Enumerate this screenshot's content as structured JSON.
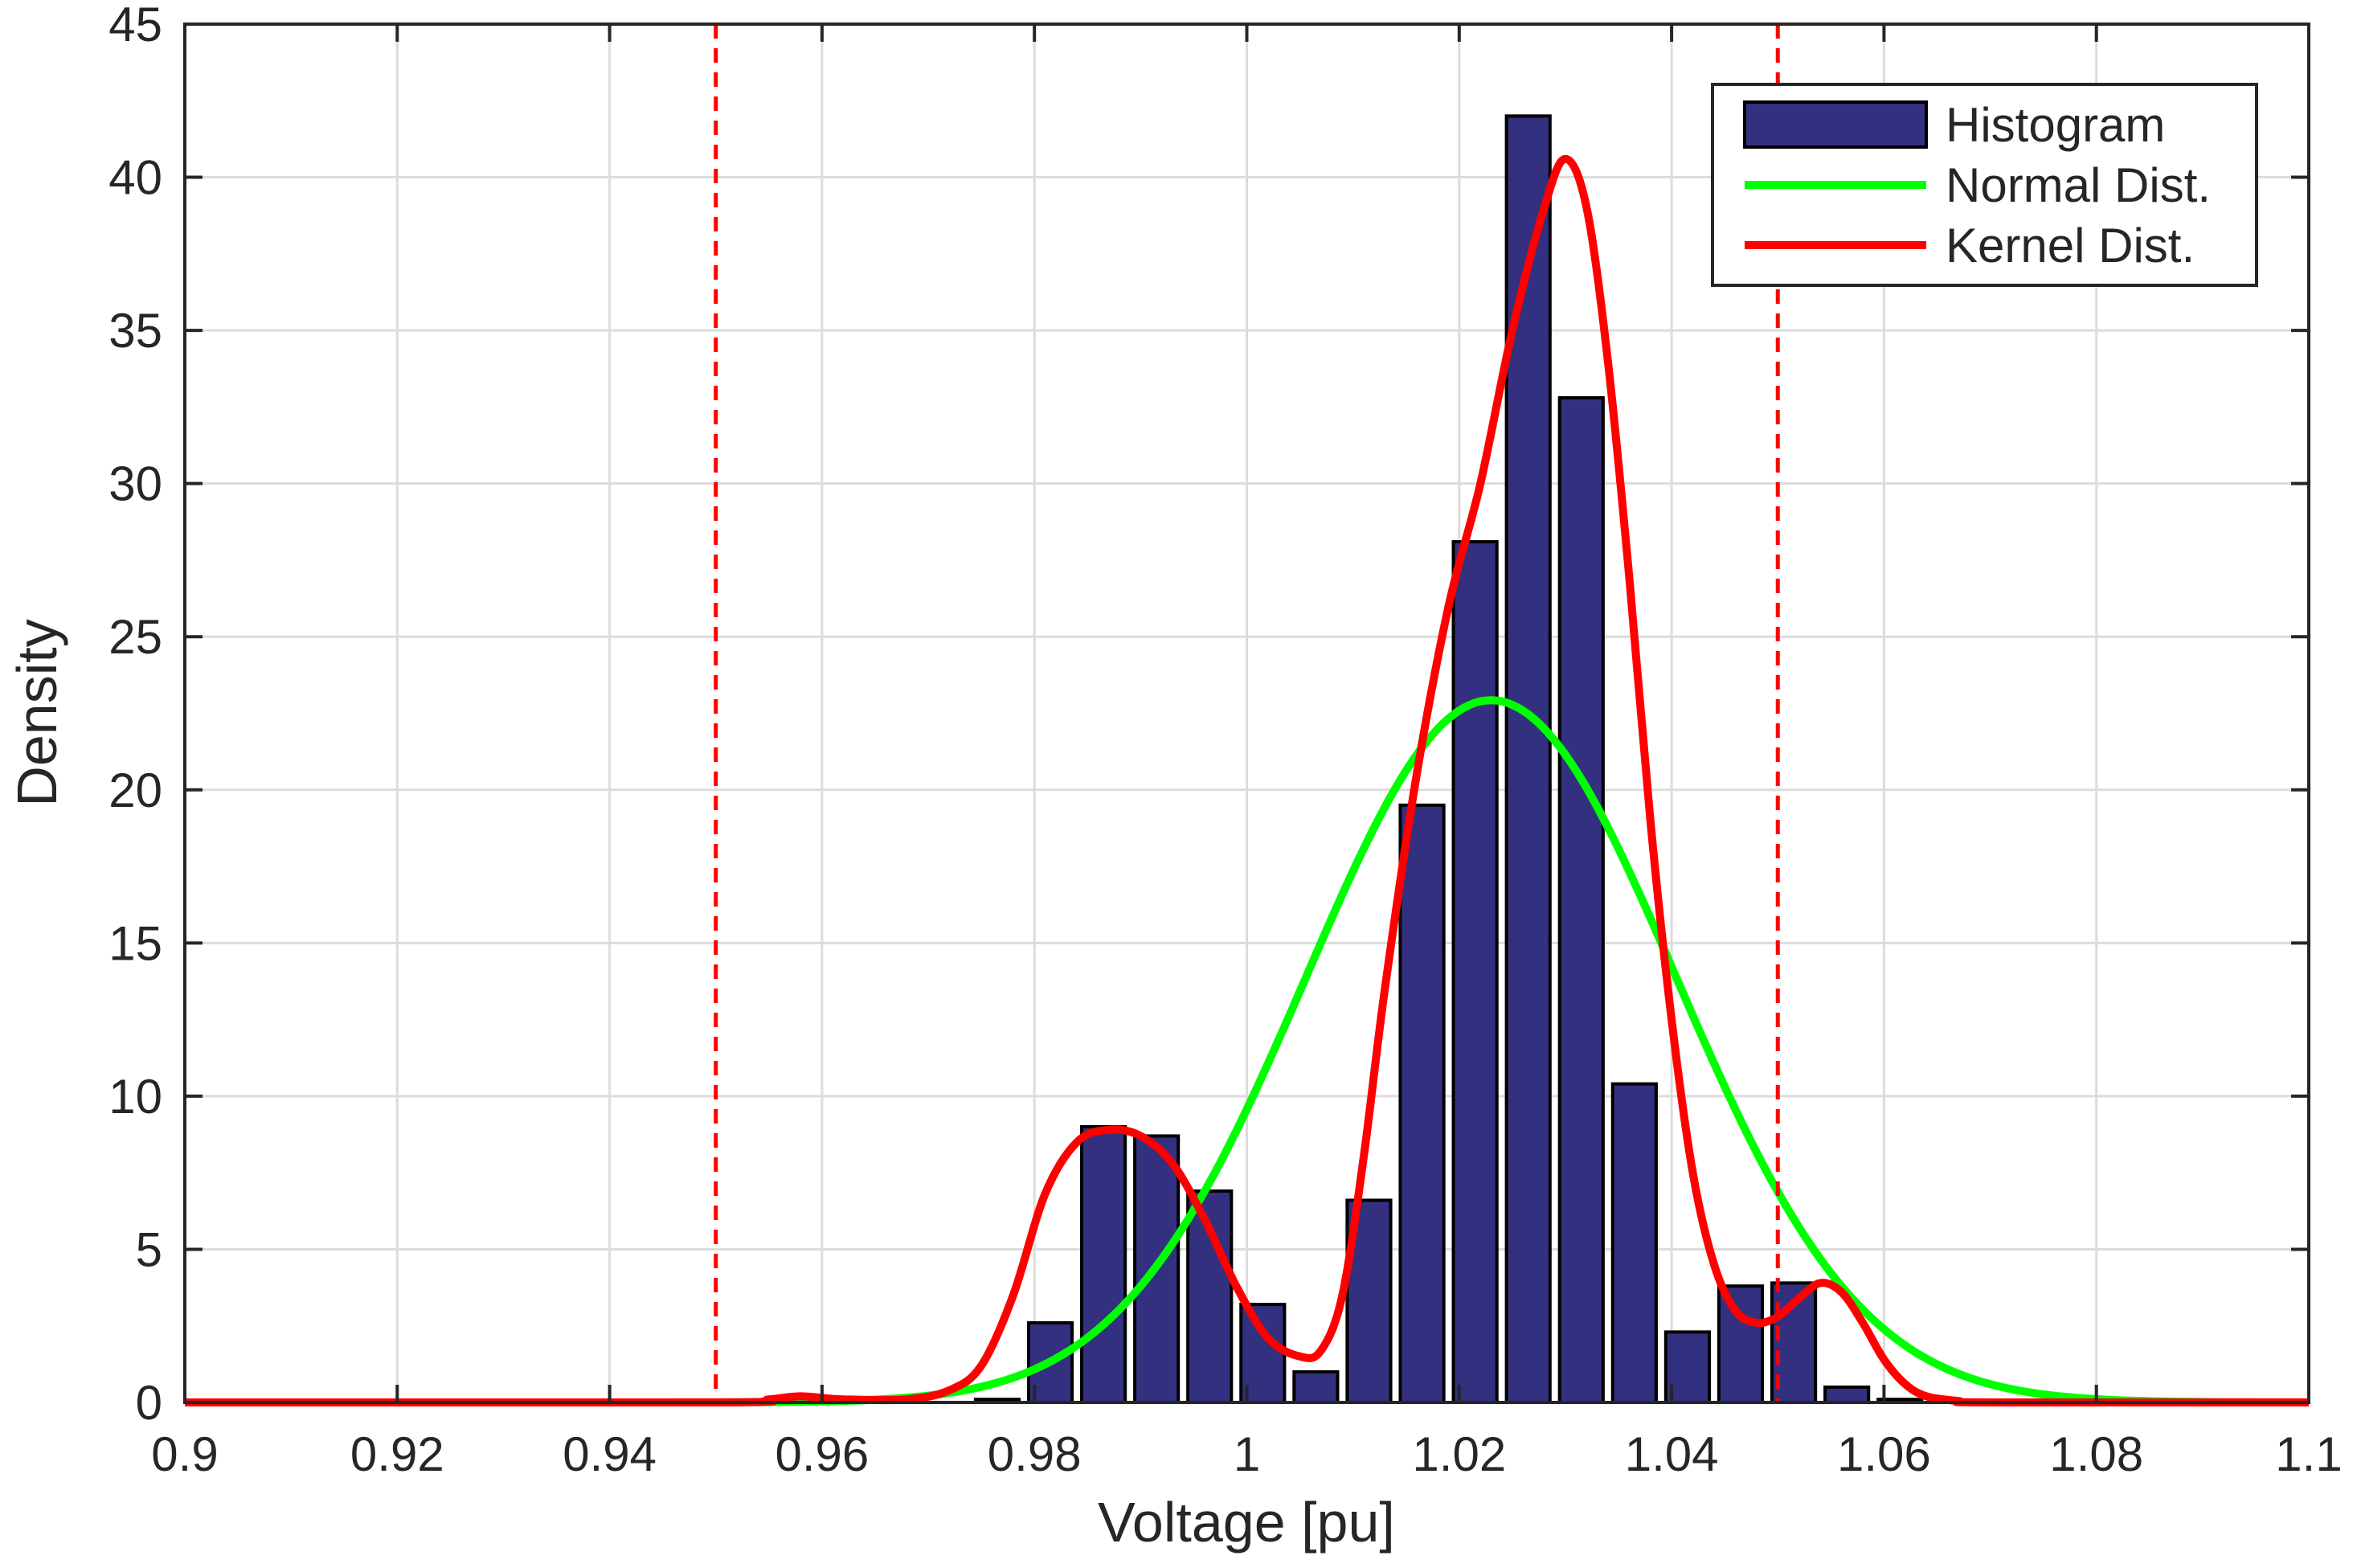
{
  "chart_data": {
    "type": "bar",
    "xlabel": "Voltage [pu]",
    "ylabel": "Density",
    "xlim": [
      0.9,
      1.1
    ],
    "ylim": [
      0,
      45
    ],
    "x_ticks": [
      0.9,
      0.92,
      0.94,
      0.96,
      0.98,
      1.0,
      1.02,
      1.04,
      1.06,
      1.08,
      1.1
    ],
    "x_tick_labels": [
      "0.9",
      "0.92",
      "0.94",
      "0.96",
      "0.98",
      "1",
      "1.02",
      "1.04",
      "1.06",
      "1.08",
      "1.1"
    ],
    "y_ticks": [
      0,
      5,
      10,
      15,
      20,
      25,
      30,
      35,
      40,
      45
    ],
    "y_tick_labels": [
      "0",
      "5",
      "10",
      "15",
      "20",
      "25",
      "30",
      "35",
      "40",
      "45"
    ],
    "grid": true,
    "legend_position": "top-right",
    "colors": {
      "histogram": "#33307f",
      "normal": "#00ff00",
      "kernel": "#ff0000",
      "limits": "#ff0000"
    },
    "histogram": {
      "name": "Histogram",
      "bin_width": 0.005,
      "bin_centers": [
        0.9565,
        0.9615,
        0.9665,
        0.9715,
        0.9765,
        0.9815,
        0.9865,
        0.9915,
        0.9965,
        1.0015,
        1.0065,
        1.0115,
        1.0165,
        1.0215,
        1.0265,
        1.0315,
        1.0365,
        1.0415,
        1.0465,
        1.0515,
        1.0565,
        1.0615
      ],
      "values": [
        0.1,
        0,
        0,
        0,
        0.1,
        2.6,
        9.0,
        8.7,
        6.9,
        3.2,
        1.0,
        6.6,
        19.5,
        28.1,
        42.0,
        32.8,
        10.4,
        2.3,
        3.8,
        3.9,
        0.5,
        0.1
      ]
    },
    "normal": {
      "name": "Normal Dist.",
      "mean": 1.023,
      "sd": 0.0174
    },
    "kernel": {
      "name": "Kernel Dist.",
      "x": [
        0.9,
        0.95,
        0.955,
        0.958,
        0.962,
        0.968,
        0.972,
        0.975,
        0.978,
        0.981,
        0.984,
        0.987,
        0.99,
        0.993,
        0.996,
        0.999,
        1.002,
        1.005,
        1.007,
        1.009,
        1.011,
        1.013,
        1.016,
        1.019,
        1.022,
        1.025,
        1.028,
        1.03,
        1.032,
        1.034,
        1.036,
        1.038,
        1.04,
        1.042,
        1.044,
        1.046,
        1.048,
        1.05,
        1.052,
        1.054,
        1.056,
        1.058,
        1.06,
        1.062,
        1.064,
        1.067,
        1.07,
        1.1
      ],
      "y": [
        0,
        0,
        0.1,
        0.2,
        0.1,
        0.1,
        0.4,
        1.2,
        3.5,
        6.8,
        8.5,
        8.9,
        8.7,
        7.8,
        6.0,
        3.8,
        2.1,
        1.5,
        1.7,
        3.5,
        8.0,
        13.5,
        20.5,
        26.0,
        30.0,
        35.0,
        39.0,
        40.6,
        39.0,
        34.0,
        27.0,
        19.0,
        12.5,
        7.5,
        4.5,
        3.0,
        2.6,
        2.8,
        3.4,
        3.9,
        3.6,
        2.6,
        1.4,
        0.6,
        0.2,
        0.05,
        0,
        0
      ]
    },
    "limits": {
      "lower": 0.95,
      "upper": 1.05
    }
  }
}
